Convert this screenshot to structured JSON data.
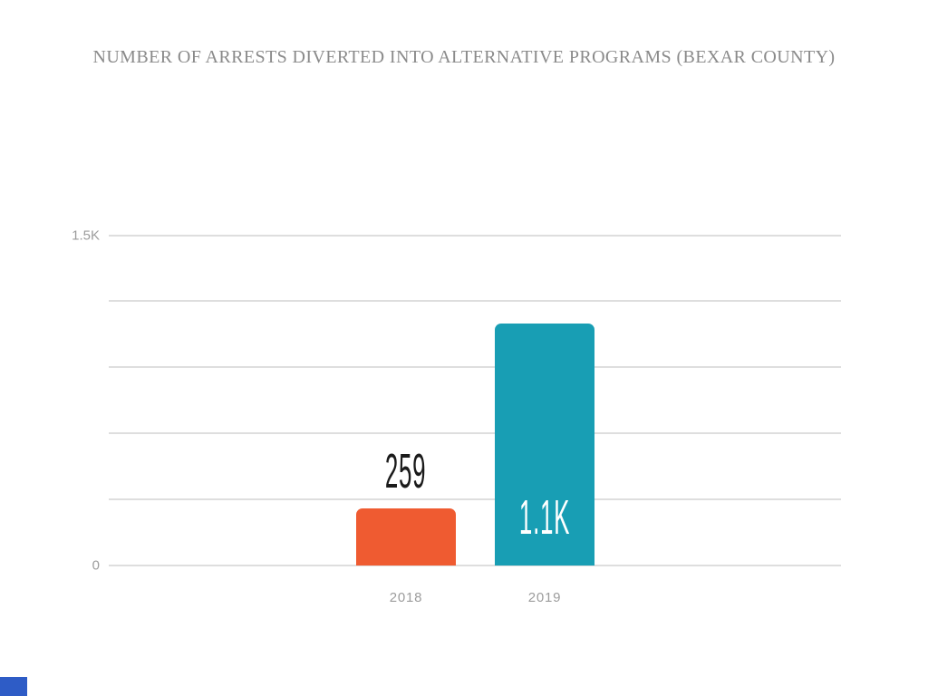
{
  "title": "NUMBER OF ARRESTS DIVERTED INTO ALTERNATIVE PROGRAMS (BEXAR COUNTY)",
  "chart_data": {
    "type": "bar",
    "title": "NUMBER OF ARRESTS DIVERTED INTO ALTERNATIVE PROGRAMS (BEXAR COUNTY)",
    "categories": [
      "2018",
      "2019"
    ],
    "values": [
      259,
      1100
    ],
    "value_labels": [
      "259",
      "1.1K"
    ],
    "series_colors": [
      "#EF5B31",
      "#189EB4"
    ],
    "value_label_colors": [
      "#1b1b1b",
      "#ffffff"
    ],
    "ylim": [
      0,
      1500
    ],
    "gridline_values": [
      0,
      300,
      600,
      900,
      1200,
      1500
    ],
    "yticks": [
      {
        "value": 1500,
        "label": "1.5K"
      },
      {
        "value": 0,
        "label": "0"
      }
    ],
    "grid": true,
    "legend": false
  },
  "colors": {
    "title_text": "#8a8a8a",
    "axis_text": "#9c9c9c",
    "gridline": "#dedede",
    "bar_2018": "#EF5B31",
    "bar_2019": "#189EB4",
    "brand_mark": "#2E5CC6"
  },
  "brand": {
    "color": "#2E5CC6"
  }
}
